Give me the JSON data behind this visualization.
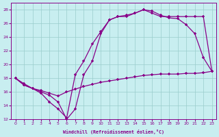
{
  "xlabel": "Windchill (Refroidissement éolien,°C)",
  "background_color": "#c8eef0",
  "line_color": "#880088",
  "grid_color": "#99cccc",
  "xlim": [
    -0.5,
    23.5
  ],
  "ylim": [
    12,
    29
  ],
  "yticks": [
    12,
    14,
    16,
    18,
    20,
    22,
    24,
    26,
    28
  ],
  "xticks": [
    0,
    1,
    2,
    3,
    4,
    5,
    6,
    7,
    8,
    9,
    10,
    11,
    12,
    13,
    14,
    15,
    16,
    17,
    18,
    19,
    20,
    21,
    22,
    23
  ],
  "series1_x": [
    0,
    1,
    2,
    3,
    4,
    5,
    6,
    7,
    8,
    9,
    10,
    11,
    12,
    13,
    14,
    15,
    16,
    17,
    18,
    19,
    20,
    21,
    22,
    23
  ],
  "series1_y": [
    18.0,
    17.0,
    16.5,
    16.2,
    15.8,
    15.4,
    16.0,
    16.4,
    16.8,
    17.1,
    17.4,
    17.6,
    17.8,
    18.0,
    18.2,
    18.4,
    18.5,
    18.6,
    18.6,
    18.6,
    18.7,
    18.7,
    18.8,
    19.0
  ],
  "series2_x": [
    0,
    1,
    2,
    3,
    4,
    5,
    6,
    7,
    8,
    9,
    10,
    11,
    12,
    13,
    14,
    15,
    16,
    17,
    18,
    19,
    20,
    21,
    22,
    23
  ],
  "series2_y": [
    18.0,
    17.2,
    16.5,
    15.8,
    14.5,
    13.5,
    12.2,
    18.5,
    20.5,
    23.0,
    24.8,
    26.5,
    27.0,
    27.2,
    27.5,
    28.0,
    27.8,
    27.2,
    26.8,
    26.7,
    25.8,
    24.5,
    21.0,
    19.0
  ],
  "series3_x": [
    0,
    1,
    2,
    3,
    4,
    5,
    6,
    7,
    8,
    9,
    10,
    11,
    12,
    13,
    14,
    15,
    16,
    17,
    18,
    19,
    20,
    21,
    22,
    23
  ],
  "series3_y": [
    18.0,
    17.0,
    16.5,
    16.0,
    15.5,
    14.5,
    12.0,
    13.5,
    18.5,
    20.5,
    24.5,
    26.5,
    27.0,
    27.0,
    27.5,
    28.0,
    27.5,
    27.0,
    27.0,
    27.0,
    27.0,
    27.0,
    27.0,
    19.0
  ]
}
